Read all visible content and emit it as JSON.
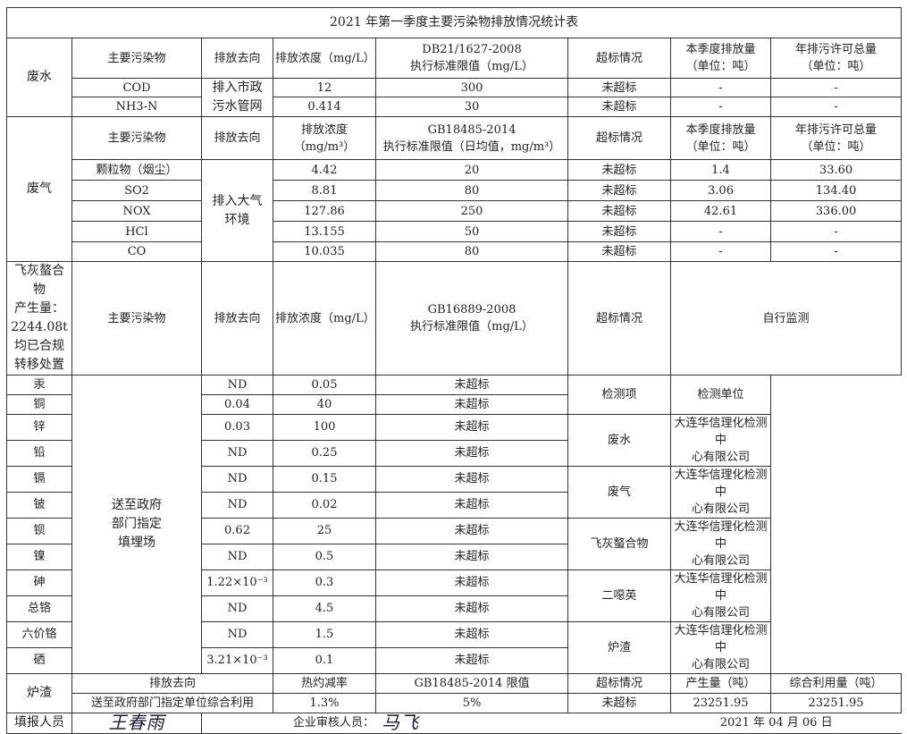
{
  "title": "2021 年第一季度主要污染物排放情况统计表",
  "wastewater": {
    "category": "废水",
    "headers": [
      "主要污染物",
      "排放去向",
      "排放浓度（mg/L）",
      "DB21/1627-2008",
      "执行标准限值（mg/L）",
      "超标情况",
      "本季度排放量",
      "（单位：吨）",
      "年排污许可总量",
      "（单位：吨）"
    ],
    "destination_line1": "排入市政",
    "destination_line2": "污水管网",
    "rows": [
      [
        "COD",
        "12",
        "300",
        "未超标",
        "-",
        "-"
      ],
      [
        "NH3-N",
        "0.414",
        "30",
        "未超标",
        "-",
        "-"
      ]
    ]
  },
  "waste_gas": {
    "category": "废气",
    "headers": [
      "主要污染物",
      "排放去向",
      "排放浓度",
      "（mg/m³）",
      "GB18485-2014",
      "执行标准限值（日均值，mg/m³）",
      "超标情况",
      "本季度排放量",
      "（单位：吨）",
      "年排污许可总量",
      "（单位：吨）"
    ],
    "destination_line1": "排入大气",
    "destination_line2": "环境",
    "rows": [
      [
        "颗粒物（烟尘）",
        "4.42",
        "20",
        "未超标",
        "1.4",
        "33.60"
      ],
      [
        "SO2",
        "8.81",
        "80",
        "未超标",
        "3.06",
        "134.40"
      ],
      [
        "NOX",
        "127.86",
        "250",
        "未超标",
        "42.61",
        "336.00"
      ],
      [
        "HCl",
        "13.155",
        "50",
        "未超标",
        "-",
        "-"
      ],
      [
        "CO",
        "10.035",
        "80",
        "未超标",
        "-",
        "-"
      ]
    ]
  },
  "fly_ash": {
    "category_lines": [
      "飞灰螯合",
      "物",
      "产生量：",
      "2244.08t",
      "均已合规",
      "转移处置"
    ],
    "headers": [
      "主要污染物",
      "排放去向",
      "排放浓度（mg/L）",
      "GB16889-2008",
      "执行标准限值（mg/L）",
      "超标情况",
      "自行监测"
    ],
    "destination_lines": [
      "送至政府",
      "部门指定",
      "填埋场"
    ],
    "rows": [
      [
        "汞",
        "ND",
        "0.05",
        "未超标"
      ],
      [
        "铜",
        "0.04",
        "40",
        "未超标"
      ],
      [
        "锌",
        "0.03",
        "100",
        "未超标"
      ],
      [
        "铅",
        "ND",
        "0.25",
        "未超标"
      ],
      [
        "镉",
        "ND",
        "0.15",
        "未超标"
      ],
      [
        "铍",
        "ND",
        "0.02",
        "未超标"
      ],
      [
        "钡",
        "0.62",
        "25",
        "未超标"
      ],
      [
        "镍",
        "ND",
        "0.5",
        "未超标"
      ],
      [
        "砷",
        "1.22×10⁻³",
        "0.3",
        "未超标"
      ],
      [
        "总铬",
        "ND",
        "4.5",
        "未超标"
      ],
      [
        "六价铬",
        "ND",
        "1.5",
        "未超标"
      ],
      [
        "硒",
        "3.21×10⁻³",
        "0.1",
        "未超标"
      ]
    ],
    "monitoring": {
      "item_header": "检测项",
      "unit_header": "检测单位",
      "entries": [
        {
          "item": "废水",
          "unit1": "大连华信理化检测中",
          "unit2": "心有限公司"
        },
        {
          "item": "废气",
          "unit1": "大连华信理化检测中",
          "unit2": "心有限公司"
        },
        {
          "item": "飞灰螯合物",
          "unit1": "大连华信理化检测中",
          "unit2": "心有限公司"
        },
        {
          "item": "二噁英",
          "unit1": "大连华信理化检测中",
          "unit2": "心有限公司"
        },
        {
          "item": "炉渣",
          "unit1": "大连华信理化检测中",
          "unit2": "心有限公司"
        }
      ]
    }
  },
  "slag": {
    "category": "炉渣",
    "headers": [
      "排放去向",
      "热灼减率",
      "GB18485-2014 限值",
      "超标情况",
      "产生量（吨）",
      "综合利用量（吨）"
    ],
    "row": [
      "送至政府部门指定单位综合利用",
      "1.3%",
      "5%",
      "未超标",
      "23251.95",
      "23251.95"
    ]
  },
  "footer": {
    "reporter_label": "填报人员",
    "reporter_signature": "王春雨",
    "reviewer_label": "企业审核人员：",
    "reviewer_signature": "马飞",
    "date": "2021 年 04 月 06 日"
  }
}
